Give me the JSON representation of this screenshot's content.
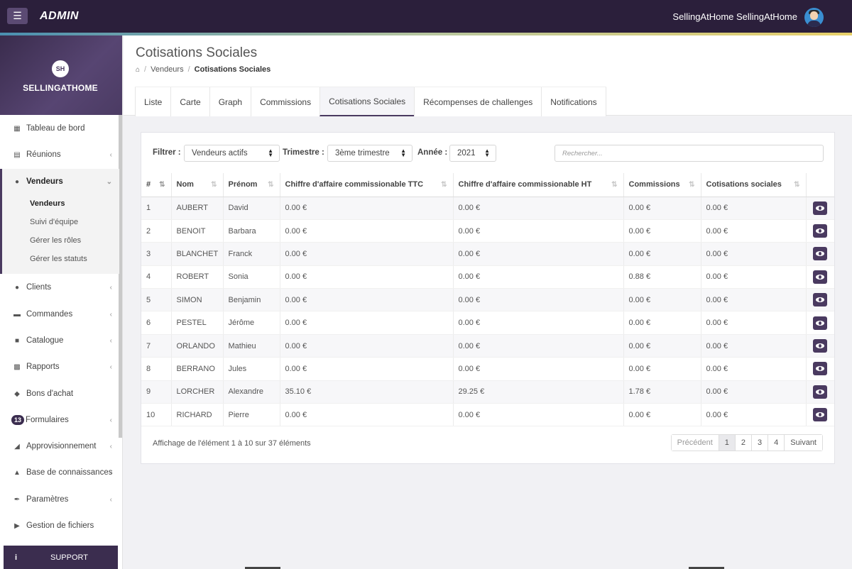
{
  "topbar": {
    "admin_label": "ADMIN",
    "user_name": "SellingAtHome SellingAtHome"
  },
  "sidebar": {
    "brand_initials": "SH",
    "brand_text": "SELLINGATHOME",
    "items": [
      {
        "label": "Tableau de bord",
        "icon": "dashboard-icon"
      },
      {
        "label": "Réunions",
        "icon": "calendar-icon"
      },
      {
        "label": "Vendeurs",
        "icon": "users-icon"
      },
      {
        "label": "Clients",
        "icon": "users-icon"
      },
      {
        "label": "Commandes",
        "icon": "credit-card-icon"
      },
      {
        "label": "Catalogue",
        "icon": "book-icon"
      },
      {
        "label": "Rapports",
        "icon": "bar-chart-icon"
      },
      {
        "label": "Bons d'achat",
        "icon": "tag-icon"
      },
      {
        "label": "Formulaires",
        "icon": "form-icon",
        "badge": "13"
      },
      {
        "label": "Approvisionnement",
        "icon": "factory-icon"
      },
      {
        "label": "Base de connaissances",
        "icon": "graduation-cap-icon"
      },
      {
        "label": "Paramètres",
        "icon": "wrench-icon"
      },
      {
        "label": "Gestion de fichiers",
        "icon": "folder-icon"
      }
    ],
    "subitems": [
      "Vendeurs",
      "Suivi d'équipe",
      "Gérer les rôles",
      "Gérer les statuts"
    ],
    "support_label": "SUPPORT"
  },
  "page": {
    "title": "Cotisations Sociales",
    "breadcrumb": [
      "Vendeurs",
      "Cotisations Sociales"
    ]
  },
  "tabs": [
    "Liste",
    "Carte",
    "Graph",
    "Commissions",
    "Cotisations Sociales",
    "Récompenses de challenges",
    "Notifications"
  ],
  "filters": {
    "filter_label": "Filtrer :",
    "filter_value": "Vendeurs actifs",
    "quarter_label": "Trimestre :",
    "quarter_value": "3ème trimestre",
    "year_label": "Année :",
    "year_value": "2021",
    "search_placeholder": "Rechercher..."
  },
  "table": {
    "columns": [
      "#",
      "Nom",
      "Prénom",
      "Chiffre d'affaire commissionable TTC",
      "Chiffre d'affaire commissionable HT",
      "Commissions",
      "Cotisations sociales"
    ],
    "rows": [
      [
        "1",
        "AUBERT",
        "David",
        "0.00 €",
        "0.00 €",
        "0.00 €",
        "0.00 €"
      ],
      [
        "2",
        "BENOIT",
        "Barbara",
        "0.00 €",
        "0.00 €",
        "0.00 €",
        "0.00 €"
      ],
      [
        "3",
        "BLANCHET",
        "Franck",
        "0.00 €",
        "0.00 €",
        "0.00 €",
        "0.00 €"
      ],
      [
        "4",
        "ROBERT",
        "Sonia",
        "0.00 €",
        "0.00 €",
        "0.88 €",
        "0.00 €"
      ],
      [
        "5",
        "SIMON",
        "Benjamin",
        "0.00 €",
        "0.00 €",
        "0.00 €",
        "0.00 €"
      ],
      [
        "6",
        "PESTEL",
        "Jérôme",
        "0.00 €",
        "0.00 €",
        "0.00 €",
        "0.00 €"
      ],
      [
        "7",
        "ORLANDO",
        "Mathieu",
        "0.00 €",
        "0.00 €",
        "0.00 €",
        "0.00 €"
      ],
      [
        "8",
        "BERRANO",
        "Jules",
        "0.00 €",
        "0.00 €",
        "0.00 €",
        "0.00 €"
      ],
      [
        "9",
        "LORCHER",
        "Alexandre",
        "35.10 €",
        "29.25 €",
        "1.78 €",
        "0.00 €"
      ],
      [
        "10",
        "RICHARD",
        "Pierre",
        "0.00 €",
        "0.00 €",
        "0.00 €",
        "0.00 €"
      ]
    ]
  },
  "footer": {
    "info": "Affichage de l'élément 1 à 10 sur 37 éléments",
    "pagination": [
      "Précédent",
      "1",
      "2",
      "3",
      "4",
      "Suivant"
    ]
  },
  "colors": {
    "topbar": "#2b1f3b",
    "accent": "#4a3a60"
  }
}
